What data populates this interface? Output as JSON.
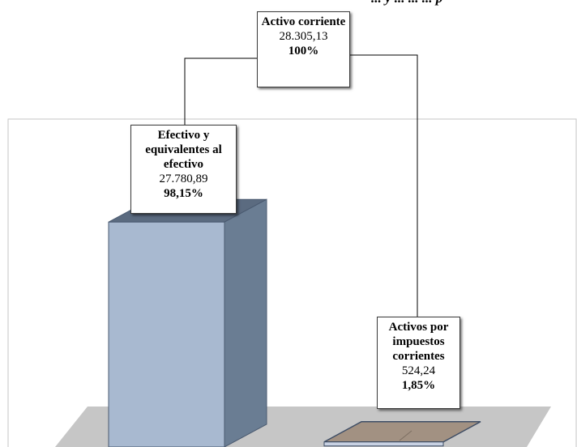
{
  "caption": "... y ... ... ... p",
  "chart_data": {
    "type": "bar",
    "title": "",
    "root": {
      "label": "Activo corriente",
      "value": 28305.13,
      "value_label": "28.305,13",
      "percent_label": "100%"
    },
    "categories": [
      "Efectivo y equivalentes al efectivo",
      "Activos por impuestos corrientes"
    ],
    "values": [
      27780.89,
      524.24
    ],
    "value_labels": [
      "27.780,89",
      "524,24"
    ],
    "percent_labels": [
      "98,15%",
      "1,85%"
    ],
    "ylim": [
      0,
      28305.13
    ],
    "grid": false,
    "legend": "none"
  },
  "colors": {
    "bar1_front": "#a8b9d0",
    "bar1_side": "#6a7d93",
    "bar1_top": "#5b6b80",
    "bar2_top": "#a29182",
    "floor": "#c6c6c6",
    "plot_border": "#c6c6c6"
  }
}
